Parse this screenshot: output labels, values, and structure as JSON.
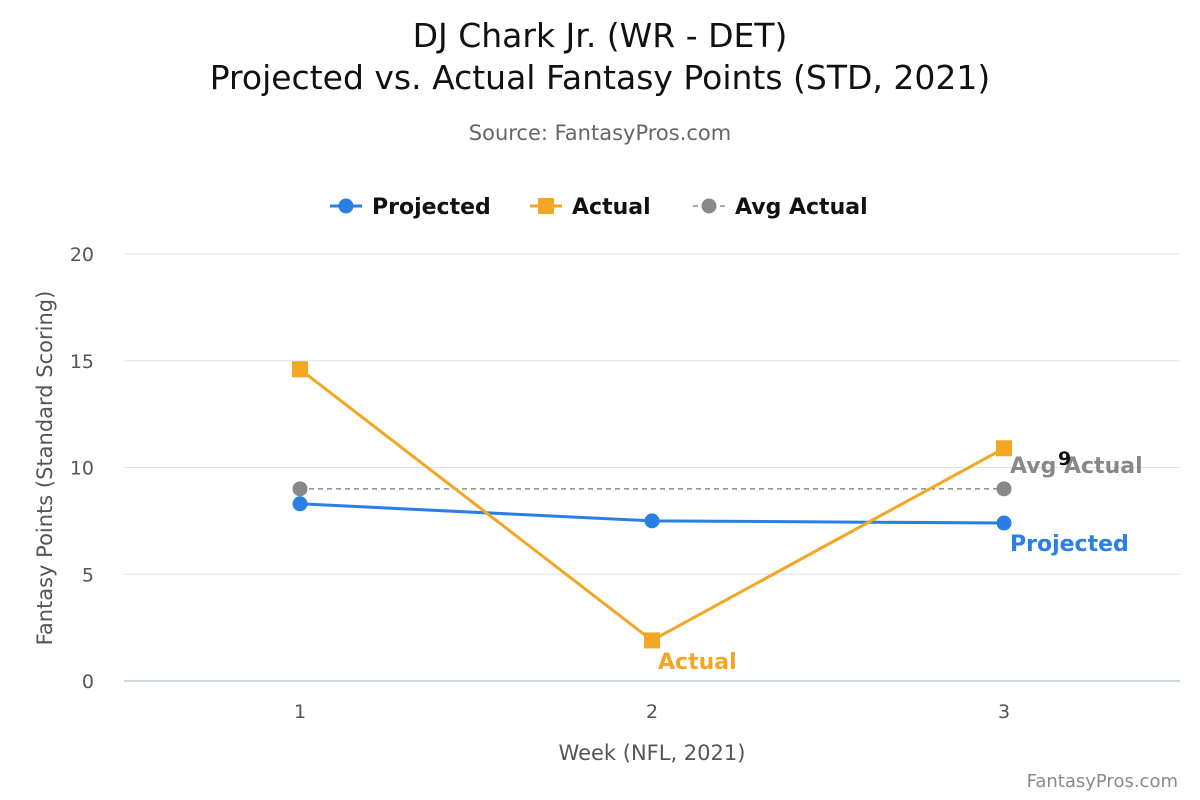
{
  "header": {
    "title_line1": "DJ Chark Jr. (WR - DET)",
    "title_line2": "Projected vs. Actual Fantasy Points (STD, 2021)",
    "source": "Source: FantasyPros.com"
  },
  "footer": {
    "watermark": "FantasyPros.com"
  },
  "chart_data": {
    "type": "line",
    "title": "DJ Chark Jr. (WR - DET)\nProjected vs. Actual Fantasy Points (STD, 2021)",
    "subtitle": "Source: FantasyPros.com",
    "xlabel": "Week (NFL, 2021)",
    "ylabel": "Fantasy Points (Standard Scoring)",
    "categories": [
      "1",
      "2",
      "3"
    ],
    "ylim": [
      0,
      20
    ],
    "yticks": [
      0,
      5,
      10,
      15,
      20
    ],
    "grid": true,
    "legend_position": "top-center",
    "series": [
      {
        "name": "Projected",
        "values": [
          8.3,
          7.5,
          7.4
        ],
        "color": "#2a7fe3",
        "marker": "circle",
        "line_style": "solid",
        "end_label": "Projected"
      },
      {
        "name": "Actual",
        "values": [
          14.6,
          1.9,
          10.9
        ],
        "color": "#f2a623",
        "marker": "square",
        "line_style": "solid",
        "end_label": "Actual"
      },
      {
        "name": "Avg Actual",
        "values": [
          9,
          null,
          9
        ],
        "color": "#888888",
        "marker": "circle",
        "line_style": "dashed",
        "end_label": "Avg Actual",
        "data_label": "9"
      }
    ]
  }
}
